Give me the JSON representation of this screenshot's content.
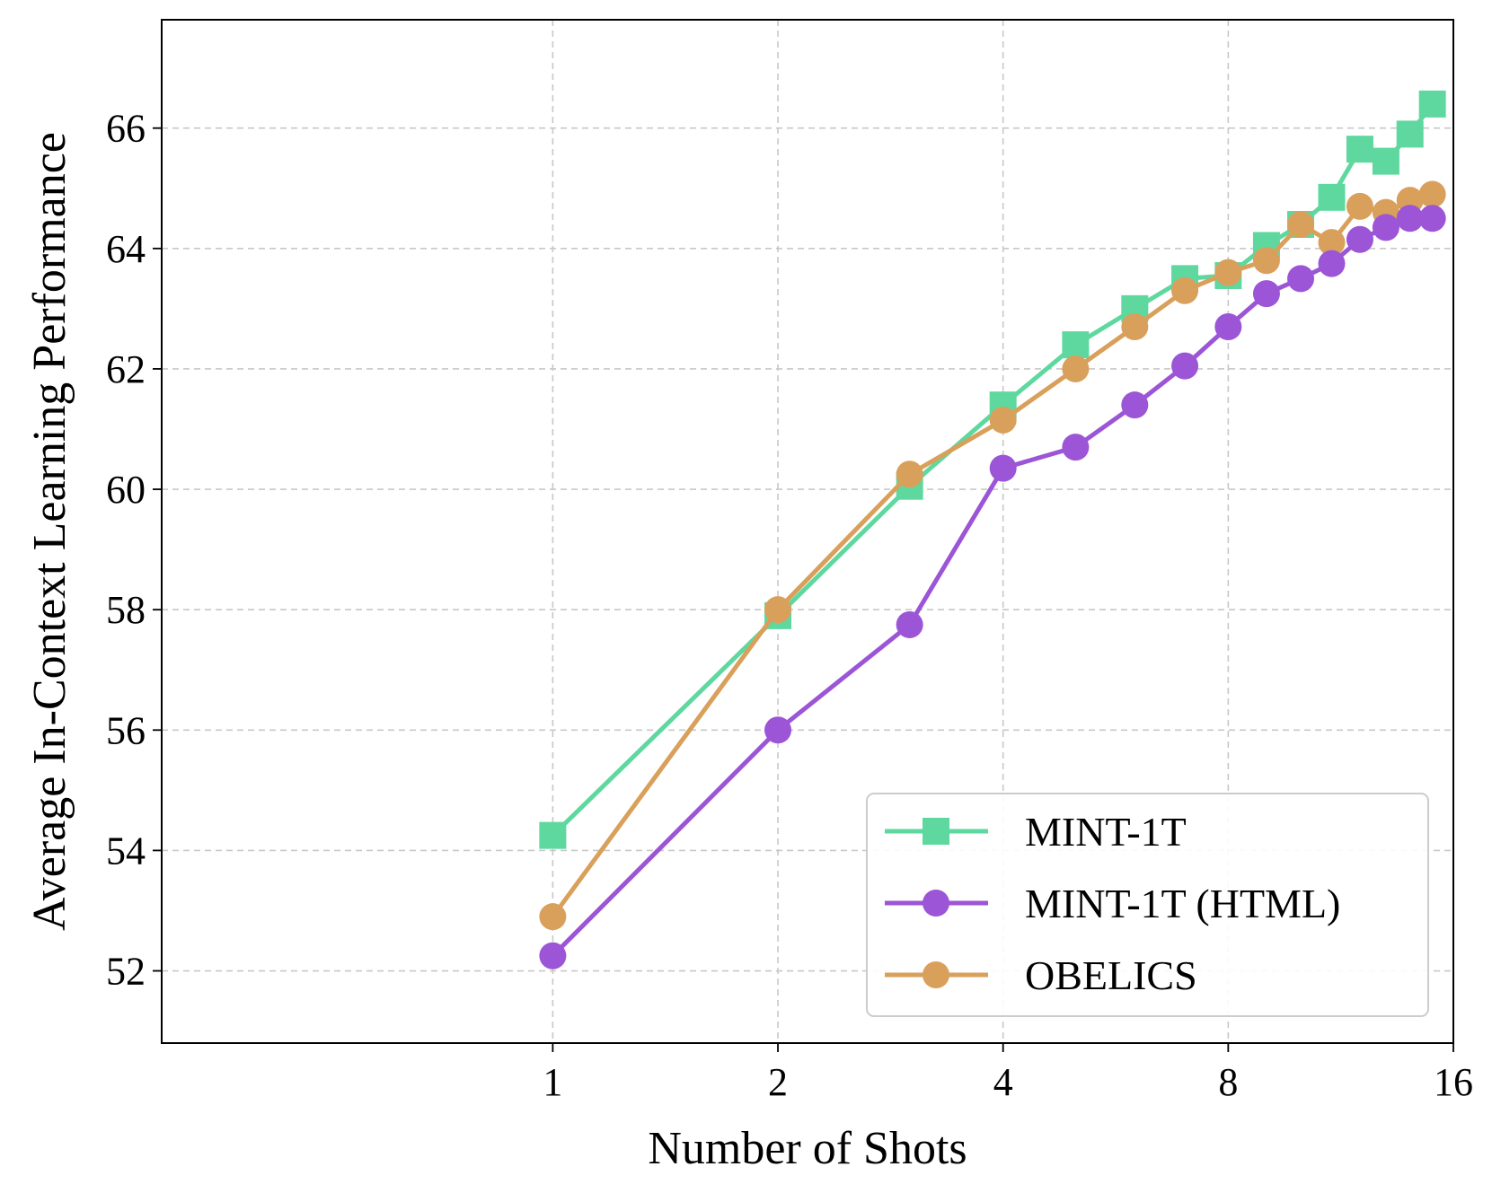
{
  "chart_data": {
    "type": "line",
    "xlabel": "Number of Shots",
    "ylabel": "Average In-Context Learning Performance",
    "xlim": [
      0.3,
      16
    ],
    "ylim": [
      50.8,
      67.8
    ],
    "x_ticks": [
      1,
      2,
      4,
      8,
      16
    ],
    "y_ticks": [
      52,
      54,
      56,
      58,
      60,
      62,
      64,
      66
    ],
    "grid": true,
    "legend_position": "lower-right",
    "x": [
      1,
      2,
      3,
      4,
      5,
      6,
      7,
      8,
      9,
      10,
      11,
      12,
      13,
      14,
      15
    ],
    "series": [
      {
        "name": "MINT-1T",
        "color": "#5ed89f",
        "marker": "square",
        "values": [
          54.25,
          57.9,
          60.05,
          61.4,
          62.4,
          63.0,
          63.5,
          63.55,
          64.05,
          64.4,
          64.85,
          65.65,
          65.45,
          65.9,
          66.4
        ]
      },
      {
        "name": "MINT-1T (HTML)",
        "color": "#9b55d6",
        "marker": "circle",
        "values": [
          52.25,
          56.0,
          57.75,
          60.35,
          60.7,
          61.4,
          62.05,
          62.7,
          63.25,
          63.5,
          63.75,
          64.15,
          64.35,
          64.5,
          64.5
        ]
      },
      {
        "name": "OBELICS",
        "color": "#d9a05b",
        "marker": "circle",
        "values": [
          52.9,
          58.0,
          60.25,
          61.15,
          62.0,
          62.7,
          63.3,
          63.6,
          63.8,
          64.4,
          64.1,
          64.7,
          64.6,
          64.8,
          64.9
        ]
      }
    ]
  }
}
